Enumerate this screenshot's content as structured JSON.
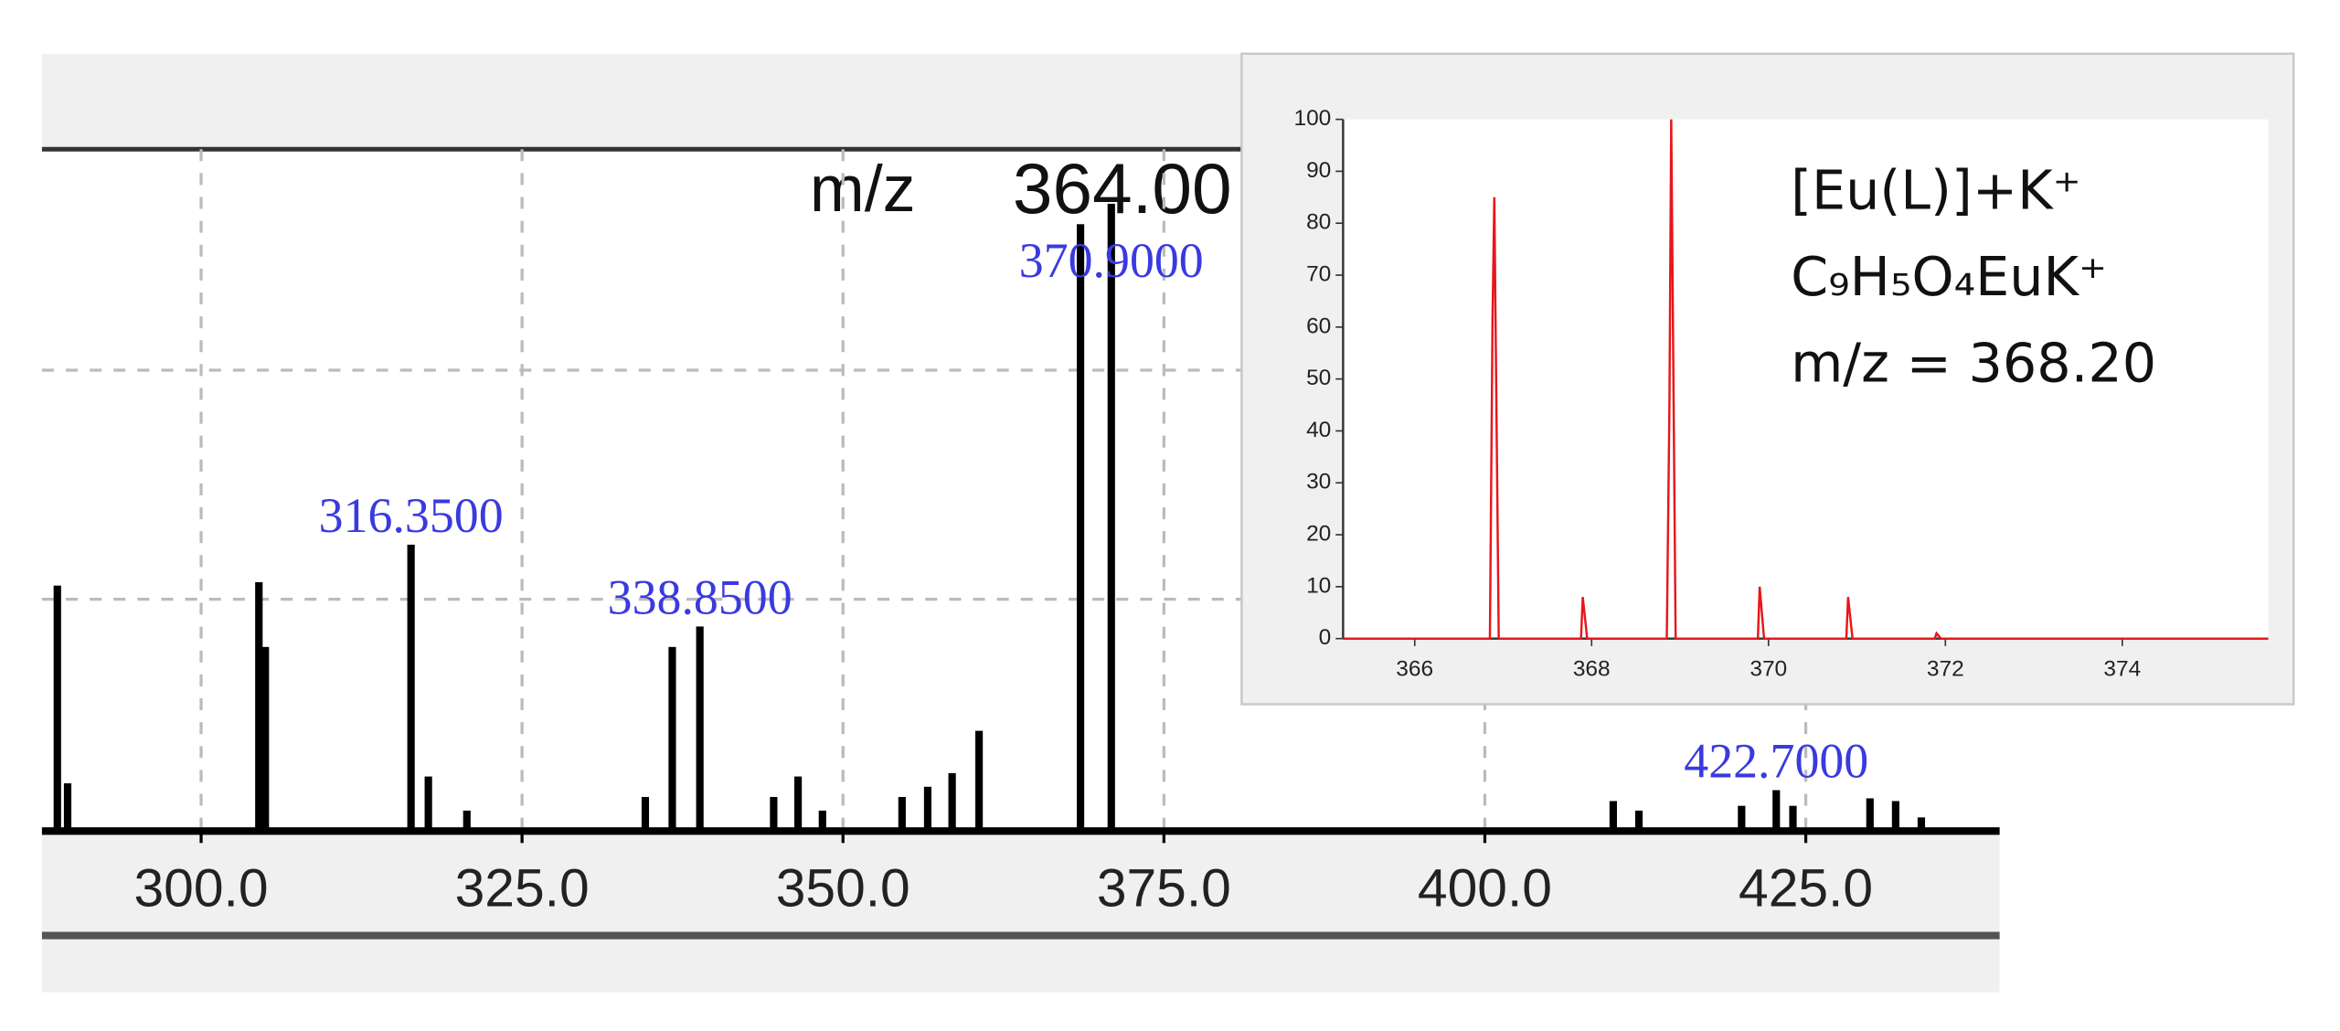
{
  "chart_data": [
    {
      "type": "bar",
      "cursor_label": "m/z",
      "cursor_value": "364.00",
      "x": [
        288.8,
        289.6,
        304.5,
        305.0,
        316.35,
        317.7,
        320.7,
        334.6,
        336.7,
        338.85,
        344.6,
        346.5,
        348.4,
        354.6,
        356.6,
        358.5,
        360.6,
        368.5,
        370.9,
        410.0,
        412.0,
        420.0,
        422.7,
        424.0,
        430.0,
        432.0,
        434.0
      ],
      "values": [
        36,
        7,
        36.5,
        27,
        42,
        8,
        3,
        5,
        27,
        30,
        5,
        8,
        3,
        5,
        6.5,
        8.5,
        14.7,
        89,
        92,
        4.4,
        3,
        3.7,
        6,
        3.7,
        4.8,
        4.4,
        2
      ],
      "color": "#000000",
      "xlim": [
        287.6,
        440.1
      ],
      "ylim": [
        0,
        100
      ],
      "xticks": [
        {
          "value": 300,
          "label": "300.0"
        },
        {
          "value": 325,
          "label": "325.0"
        },
        {
          "value": 350,
          "label": "350.0"
        },
        {
          "value": 375,
          "label": "375.0"
        },
        {
          "value": 400,
          "label": "400.0"
        },
        {
          "value": 425,
          "label": "425.0"
        }
      ],
      "yticks": [
        34,
        67.6
      ],
      "grid": true,
      "annotations": [
        {
          "value": 316.35,
          "label": "316.3500"
        },
        {
          "value": 338.85,
          "label": "338.8500"
        },
        {
          "value": 370.9,
          "label": "370.9000"
        },
        {
          "value": 422.7,
          "label": "422.7000"
        }
      ],
      "annotation_color": "#3a3ae0"
    },
    {
      "type": "line",
      "x": [
        365.19,
        366.85,
        366.88,
        366.9,
        366.95,
        367.88,
        367.9,
        367.95,
        368.85,
        368.88,
        368.9,
        368.95,
        369.88,
        369.9,
        369.95,
        370.88,
        370.9,
        370.95,
        371.88,
        371.9,
        371.95,
        375.65
      ],
      "values": [
        0,
        0,
        62,
        85,
        0,
        0,
        8,
        0,
        0,
        45,
        100,
        0,
        0,
        10,
        0,
        0,
        8,
        0,
        0,
        1,
        0,
        0
      ],
      "color": "#e8161b",
      "xlim": [
        365.19,
        375.65
      ],
      "ylim": [
        0,
        100
      ],
      "xticks": [
        366,
        368,
        370,
        372,
        374
      ],
      "yticks": [
        0,
        10,
        20,
        30,
        40,
        50,
        60,
        70,
        80,
        90,
        100
      ],
      "annotations": [
        "[Eu(L)]+K⁺",
        "C₉H₅O₄EuK⁺",
        "m/z = 368.20"
      ]
    }
  ]
}
